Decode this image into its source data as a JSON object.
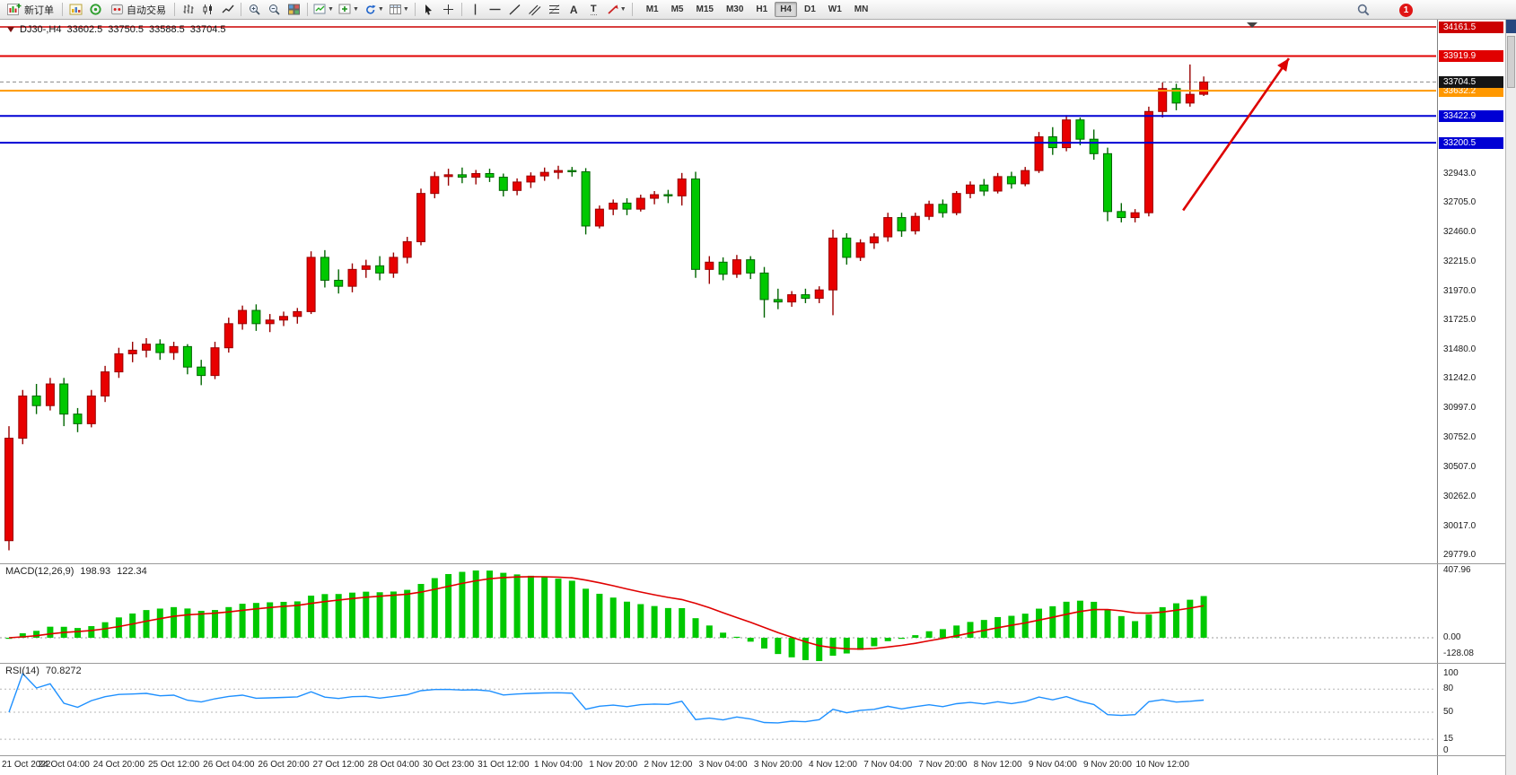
{
  "toolbar": {
    "new_order": "新订单",
    "auto_trading": "自动交易",
    "timeframes": [
      "M1",
      "M5",
      "M15",
      "M30",
      "H1",
      "H4",
      "D1",
      "W1",
      "MN"
    ],
    "active_timeframe": "H4",
    "notification_count": "1"
  },
  "chart": {
    "symbol_period": "DJ30-,H4",
    "ohlc": {
      "open": "33602.5",
      "high": "33750.5",
      "low": "33588.5",
      "close": "33704.5"
    },
    "current_price": "33704.5",
    "hlines": [
      {
        "price": 34161.5,
        "label": "34161.5",
        "color": "#cc0000",
        "width": 1.4
      },
      {
        "price": 33919.9,
        "label": "33919.9",
        "color": "#e00000",
        "width": 2
      },
      {
        "price": 33632.2,
        "label": "33632.2",
        "color": "#ff9800",
        "width": 2
      },
      {
        "price": 33422.9,
        "label": "33422.9",
        "color": "#0000d4",
        "width": 2
      },
      {
        "price": 33200.5,
        "label": "33200.5",
        "color": "#0000d4",
        "width": 2
      }
    ],
    "arrow": {
      "from_bar": 85.5,
      "from_price": 32640,
      "to_bar": 93.2,
      "to_price": 33900,
      "color": "#dd0000"
    }
  },
  "chart_data": {
    "type": "candlestick",
    "symbol": "DJ30-",
    "timeframe": "H4",
    "up_color": "#e80000",
    "down_color": "#00c800",
    "y_range": [
      29779.0,
      34161.5
    ],
    "y_axis_labels": [
      "32943.0",
      "32705.0",
      "32460.0",
      "32215.0",
      "31970.0",
      "31725.0",
      "31480.0",
      "31242.0",
      "30997.0",
      "30752.0",
      "30507.0",
      "30262.0",
      "30017.0",
      "29779.0"
    ],
    "x_labels": [
      "21 Oct 2022",
      "24 Oct 04:00",
      "24 Oct 20:00",
      "25 Oct 12:00",
      "26 Oct 04:00",
      "26 Oct 20:00",
      "27 Oct 12:00",
      "28 Oct 04:00",
      "30 Oct 23:00",
      "31 Oct 12:00",
      "1 Nov 04:00",
      "1 Nov 20:00",
      "2 Nov 12:00",
      "3 Nov 04:00",
      "3 Nov 20:00",
      "4 Nov 12:00",
      "7 Nov 04:00",
      "7 Nov 20:00",
      "8 Nov 12:00",
      "9 Nov 04:00",
      "9 Nov 20:00",
      "10 Nov 12:00"
    ],
    "x_label_every_n_bars": 4,
    "candles_ohlc": [
      [
        29900,
        30850,
        29820,
        30750
      ],
      [
        30750,
        31150,
        30700,
        31100
      ],
      [
        31100,
        31200,
        30950,
        31020
      ],
      [
        31020,
        31250,
        30980,
        31200
      ],
      [
        31200,
        31250,
        30850,
        30950
      ],
      [
        30950,
        31000,
        30800,
        30870
      ],
      [
        30870,
        31150,
        30840,
        31100
      ],
      [
        31100,
        31350,
        31050,
        31300
      ],
      [
        31300,
        31500,
        31250,
        31450
      ],
      [
        31450,
        31550,
        31380,
        31480
      ],
      [
        31480,
        31580,
        31420,
        31530
      ],
      [
        31530,
        31570,
        31400,
        31460
      ],
      [
        31460,
        31550,
        31400,
        31510
      ],
      [
        31510,
        31530,
        31280,
        31340
      ],
      [
        31340,
        31400,
        31190,
        31270
      ],
      [
        31270,
        31550,
        31240,
        31500
      ],
      [
        31500,
        31750,
        31460,
        31700
      ],
      [
        31700,
        31850,
        31650,
        31810
      ],
      [
        31810,
        31860,
        31640,
        31700
      ],
      [
        31700,
        31780,
        31630,
        31730
      ],
      [
        31730,
        31800,
        31680,
        31760
      ],
      [
        31760,
        31830,
        31700,
        31800
      ],
      [
        31800,
        32300,
        31780,
        32250
      ],
      [
        32250,
        32310,
        32000,
        32060
      ],
      [
        32060,
        32150,
        31950,
        32010
      ],
      [
        32010,
        32200,
        31960,
        32150
      ],
      [
        32150,
        32230,
        32080,
        32180
      ],
      [
        32180,
        32260,
        32060,
        32120
      ],
      [
        32120,
        32290,
        32080,
        32250
      ],
      [
        32250,
        32420,
        32200,
        32380
      ],
      [
        32380,
        32820,
        32350,
        32780
      ],
      [
        32780,
        32960,
        32740,
        32920
      ],
      [
        32920,
        32985,
        32845,
        32935
      ],
      [
        32935,
        32995,
        32865,
        32915
      ],
      [
        32915,
        32975,
        32855,
        32945
      ],
      [
        32945,
        32985,
        32875,
        32915
      ],
      [
        32915,
        32945,
        32755,
        32805
      ],
      [
        32805,
        32905,
        32765,
        32875
      ],
      [
        32875,
        32955,
        32825,
        32925
      ],
      [
        32925,
        32995,
        32885,
        32955
      ],
      [
        32955,
        33010,
        32900,
        32970
      ],
      [
        32970,
        33000,
        32920,
        32960
      ],
      [
        32960,
        32990,
        32440,
        32510
      ],
      [
        32510,
        32680,
        32490,
        32650
      ],
      [
        32650,
        32730,
        32600,
        32700
      ],
      [
        32700,
        32740,
        32600,
        32650
      ],
      [
        32650,
        32770,
        32630,
        32740
      ],
      [
        32740,
        32800,
        32690,
        32770
      ],
      [
        32770,
        32810,
        32700,
        32760
      ],
      [
        32760,
        32950,
        32680,
        32900
      ],
      [
        32900,
        32960,
        32080,
        32150
      ],
      [
        32150,
        32260,
        32030,
        32210
      ],
      [
        32210,
        32250,
        32060,
        32110
      ],
      [
        32110,
        32270,
        32080,
        32230
      ],
      [
        32230,
        32260,
        32070,
        32120
      ],
      [
        32120,
        32170,
        31750,
        31900
      ],
      [
        31900,
        31990,
        31820,
        31880
      ],
      [
        31880,
        31970,
        31840,
        31940
      ],
      [
        31940,
        31990,
        31870,
        31910
      ],
      [
        31910,
        32010,
        31870,
        31980
      ],
      [
        31980,
        32480,
        31770,
        32410
      ],
      [
        32410,
        32450,
        32190,
        32250
      ],
      [
        32250,
        32400,
        32220,
        32370
      ],
      [
        32370,
        32450,
        32320,
        32420
      ],
      [
        32420,
        32620,
        32380,
        32580
      ],
      [
        32580,
        32620,
        32420,
        32470
      ],
      [
        32470,
        32620,
        32440,
        32590
      ],
      [
        32590,
        32720,
        32560,
        32690
      ],
      [
        32690,
        32730,
        32580,
        32620
      ],
      [
        32620,
        32800,
        32600,
        32780
      ],
      [
        32780,
        32880,
        32740,
        32850
      ],
      [
        32850,
        32900,
        32760,
        32800
      ],
      [
        32800,
        32950,
        32780,
        32920
      ],
      [
        32920,
        32960,
        32820,
        32860
      ],
      [
        32860,
        33000,
        32840,
        32970
      ],
      [
        32970,
        33290,
        32950,
        33250
      ],
      [
        33250,
        33330,
        33100,
        33160
      ],
      [
        33160,
        33430,
        33130,
        33390
      ],
      [
        33390,
        33410,
        33180,
        33230
      ],
      [
        33230,
        33310,
        33060,
        33110
      ],
      [
        33110,
        33160,
        32550,
        32630
      ],
      [
        32630,
        32700,
        32540,
        32580
      ],
      [
        32580,
        32650,
        32540,
        32620
      ],
      [
        32620,
        33500,
        32590,
        33460
      ],
      [
        33460,
        33700,
        33410,
        33650
      ],
      [
        33650,
        33690,
        33470,
        33530
      ],
      [
        33530,
        33850,
        33500,
        33602.5
      ],
      [
        33602.5,
        33750.5,
        33588.5,
        33704.5
      ]
    ],
    "indicators": [
      {
        "name": "MACD",
        "params": [
          12,
          26,
          9
        ]
      },
      {
        "name": "RSI",
        "params": [
          14
        ]
      }
    ]
  },
  "macd": {
    "label": "MACD(12,26,9)",
    "value_main": "198.93",
    "value_signal": "122.34",
    "axis_labels": [
      "407.96",
      "0.00",
      "-128.08"
    ],
    "histogram_color": "#00c800",
    "signal_color": "#e00000"
  },
  "rsi": {
    "label": "RSI(14)",
    "value": "70.8272",
    "axis_labels": [
      "100",
      "80",
      "50",
      "15",
      "0"
    ],
    "levels": [
      80,
      50,
      15
    ],
    "line_color": "#1e90ff"
  }
}
